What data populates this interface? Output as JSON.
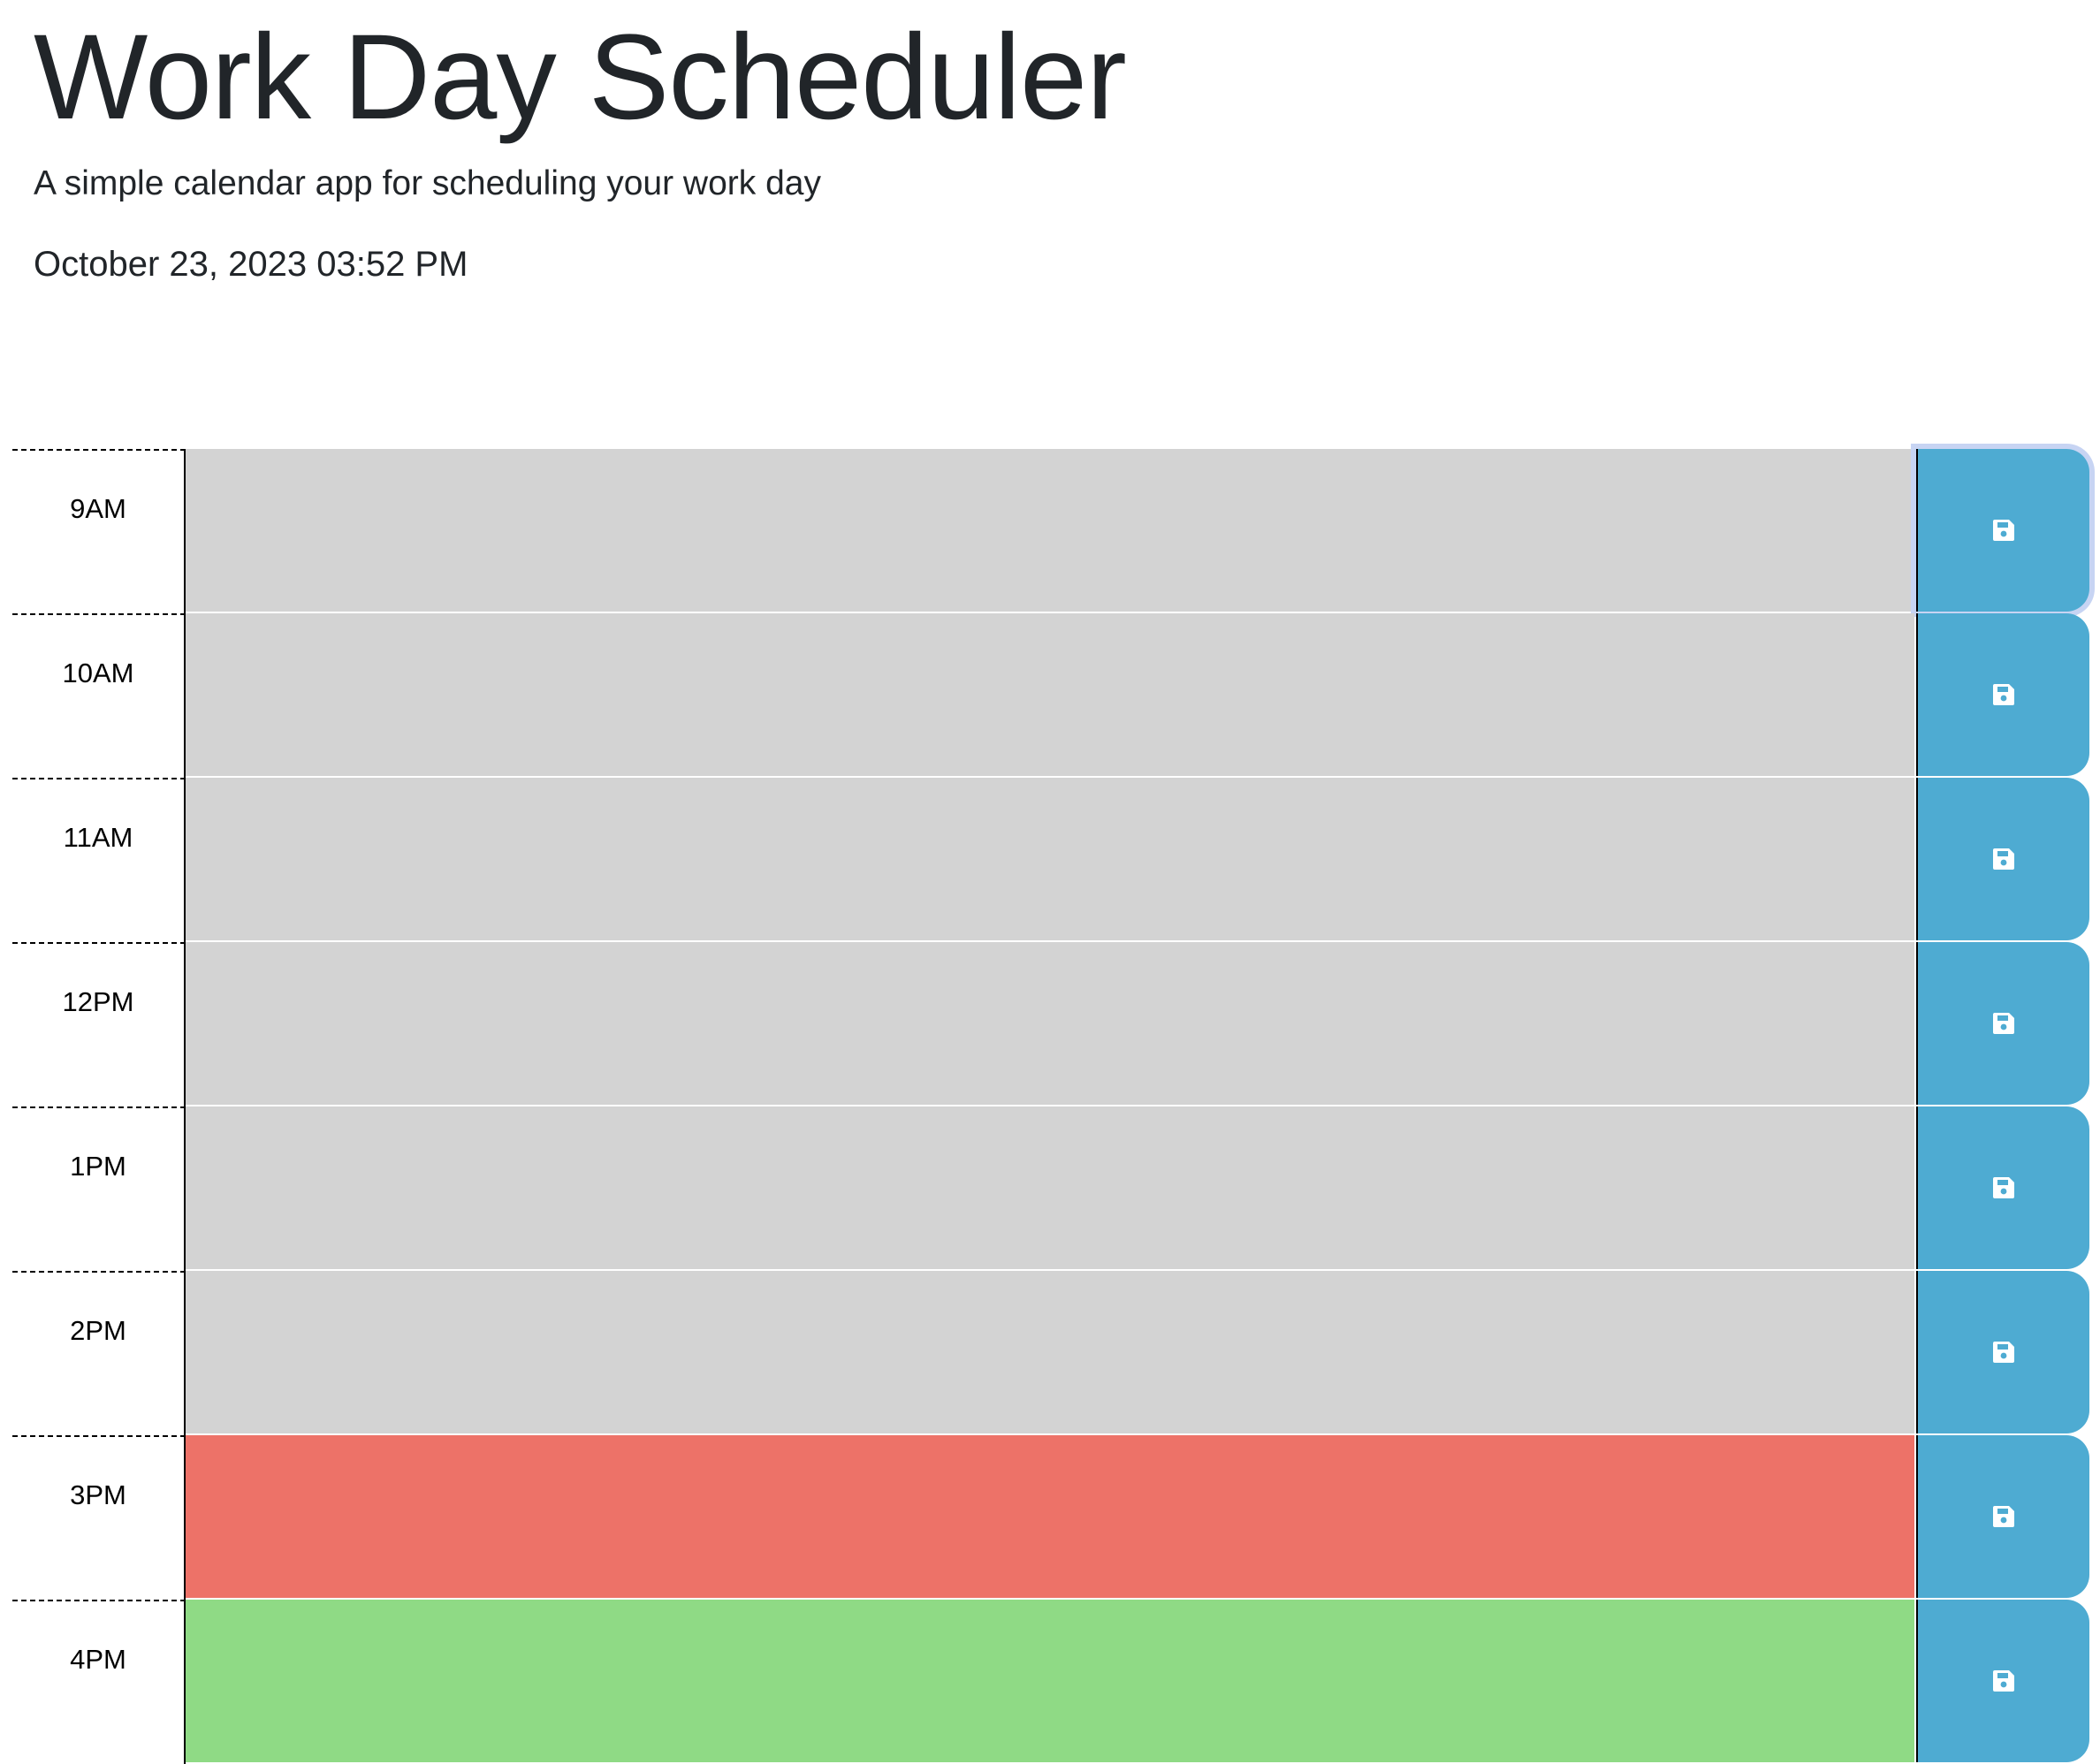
{
  "header": {
    "title": "Work Day Scheduler",
    "subtitle": "A simple calendar app for scheduling your work day",
    "current_datetime": "October 23, 2023 03:52 PM"
  },
  "colors": {
    "past": "#d3d3d3",
    "present": "#ed7268",
    "future": "#8fda85",
    "save_button": "#4eabd2"
  },
  "save_icon": "floppy-disk-icon",
  "time_blocks": [
    {
      "hour": "9AM",
      "status": "past",
      "text": ""
    },
    {
      "hour": "10AM",
      "status": "past",
      "text": ""
    },
    {
      "hour": "11AM",
      "status": "past",
      "text": ""
    },
    {
      "hour": "12PM",
      "status": "past",
      "text": ""
    },
    {
      "hour": "1PM",
      "status": "past",
      "text": ""
    },
    {
      "hour": "2PM",
      "status": "past",
      "text": ""
    },
    {
      "hour": "3PM",
      "status": "present",
      "text": ""
    },
    {
      "hour": "4PM",
      "status": "future",
      "text": ""
    }
  ]
}
